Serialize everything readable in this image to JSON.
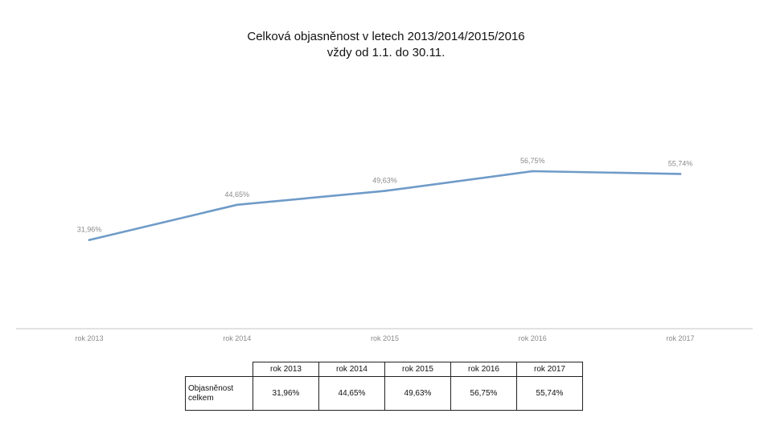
{
  "chart_data": {
    "type": "line",
    "title": "Celková objasněnost v letech 2013/2014/2015/2016",
    "subtitle": "vždy od 1.1. do 30.11.",
    "categories": [
      "rok 2013",
      "rok 2014",
      "rok 2015",
      "rok 2016",
      "rok 2017"
    ],
    "series": [
      {
        "name": "Objasněnost celkem",
        "values": [
          31.96,
          44.65,
          49.63,
          56.75,
          55.74
        ],
        "labels": [
          "31,96%",
          "44,65%",
          "49,63%",
          "56,75%",
          "55,74%"
        ]
      }
    ],
    "ylim": [
      0,
      80
    ],
    "grid": false,
    "legend": "none",
    "line_color": "#6f9bc8",
    "label_color": "#8a8a8a"
  },
  "table": {
    "row_header": "Objasněnost celkem",
    "columns": [
      "rok 2013",
      "rok 2014",
      "rok 2015",
      "rok 2016",
      "rok 2017"
    ],
    "values": [
      "31,96%",
      "44,65%",
      "49,63%",
      "56,75%",
      "55,74%"
    ]
  }
}
